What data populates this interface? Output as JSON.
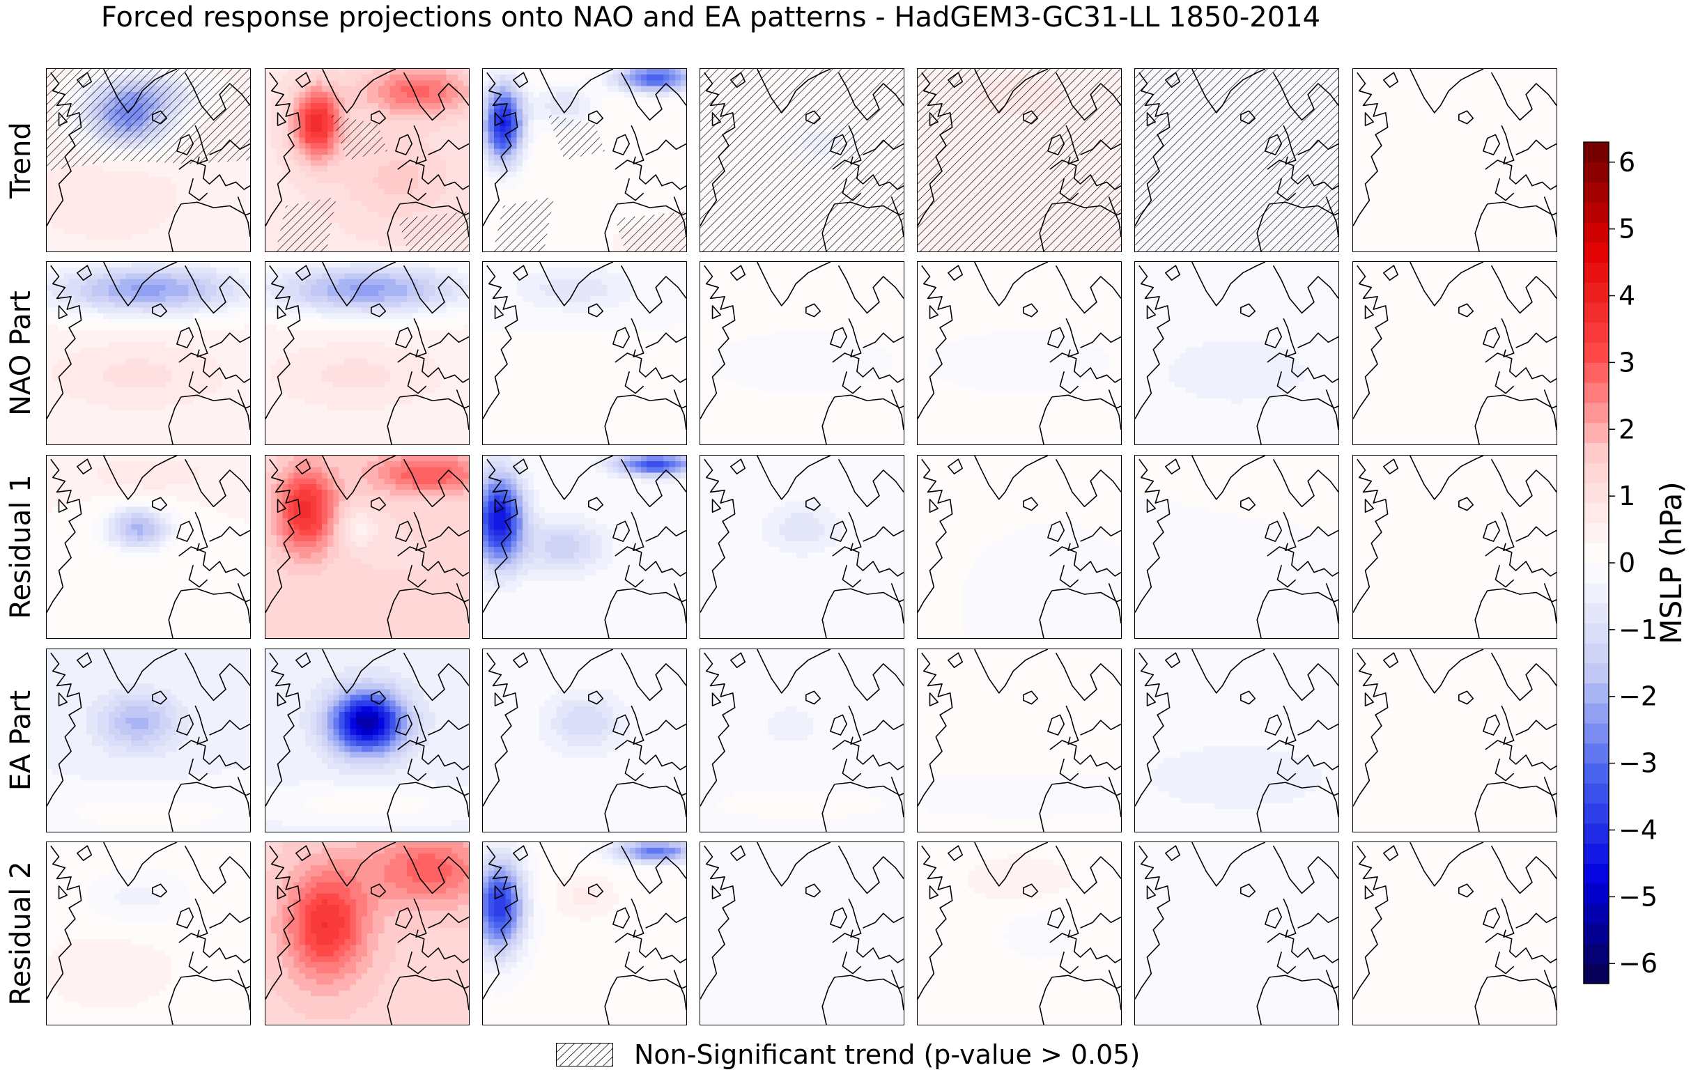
{
  "title": "Forced response projections onto NAO and EA patterns - HadGEM3-GC31-LL 1850-2014",
  "row_labels": [
    "Trend",
    "NAO Part",
    "Residual 1",
    "EA Part",
    "Residual 2"
  ],
  "legend": {
    "label": "Non-Significant trend (p-value > 0.05)"
  },
  "colorbar": {
    "label": "MSLP (hPa)",
    "vmin": -6.3,
    "vmax": 6.3,
    "ticks": [
      -6,
      -5,
      -4,
      -3,
      -2,
      -1,
      0,
      1,
      2,
      3,
      4,
      5,
      6
    ],
    "tick_labels": [
      "−6",
      "−5",
      "−4",
      "−3",
      "−2",
      "−1",
      "0",
      "1",
      "2",
      "3",
      "4",
      "5",
      "6"
    ],
    "colormap": [
      "#08004a",
      "#0000e0",
      "#4a64ef",
      "#c7cdf5",
      "#ffffff",
      "#ffd0d0",
      "#ff4848",
      "#e00000",
      "#6b0000"
    ]
  },
  "chart_data": {
    "type": "heatmap",
    "title": "Forced response projections onto NAO and EA patterns - HadGEM3-GC31-LL 1850-2014",
    "rows": [
      "Trend",
      "NAO Part",
      "Residual 1",
      "EA Part",
      "Residual 2"
    ],
    "columns": 7,
    "units": "hPa",
    "hatching": "Non-Significant trend (p-value > 0.05)",
    "panels": [
      [
        {
          "base": 0.5,
          "features": [
            {
              "x": 0.4,
              "y": 0.28,
              "sx": 0.22,
              "sy": 0.16,
              "amp": -2.8
            },
            {
              "x": 0.5,
              "y": 0.12,
              "sx": 0.3,
              "sy": 0.12,
              "amp": -1.5
            },
            {
              "x": 0.3,
              "y": 0.7,
              "sx": 0.3,
              "sy": 0.2,
              "amp": 0.4
            }
          ],
          "hatch": "top"
        },
        {
          "base": 0.8,
          "features": [
            {
              "x": 0.25,
              "y": 0.3,
              "sx": 0.12,
              "sy": 0.2,
              "amp": 3.0
            },
            {
              "x": 0.75,
              "y": 0.12,
              "sx": 0.3,
              "sy": 0.15,
              "amp": 2.0
            },
            {
              "x": 0.65,
              "y": 0.6,
              "sx": 0.3,
              "sy": 0.25,
              "amp": 0.8
            }
          ],
          "hatch": "partial"
        },
        {
          "base": 0.3,
          "features": [
            {
              "x": 0.1,
              "y": 0.3,
              "sx": 0.1,
              "sy": 0.22,
              "amp": -4.5
            },
            {
              "x": 0.85,
              "y": 0.05,
              "sx": 0.2,
              "sy": 0.08,
              "amp": -3.5
            },
            {
              "x": 0.4,
              "y": 0.2,
              "sx": 0.15,
              "sy": 0.12,
              "amp": -1.2
            }
          ],
          "hatch": "partial"
        },
        {
          "base": 0.1,
          "features": [
            {
              "x": 0.6,
              "y": 0.4,
              "sx": 0.15,
              "sy": 0.1,
              "amp": -0.6
            }
          ],
          "hatch": "all"
        },
        {
          "base": 0.3,
          "features": [
            {
              "x": 0.5,
              "y": 0.15,
              "sx": 0.3,
              "sy": 0.15,
              "amp": 0.5
            }
          ],
          "hatch": "all"
        },
        {
          "base": 0.0,
          "features": [
            {
              "x": 0.4,
              "y": 0.5,
              "sx": 0.4,
              "sy": 0.4,
              "amp": -0.2
            }
          ],
          "hatch": "all"
        },
        {
          "base": 0.0,
          "features": [],
          "hatch": "none"
        }
      ],
      [
        {
          "base": 0.4,
          "features": [
            {
              "x": 0.5,
              "y": 0.15,
              "sx": 0.5,
              "sy": 0.14,
              "amp": -2.6
            },
            {
              "x": 0.45,
              "y": 0.62,
              "sx": 0.4,
              "sy": 0.18,
              "amp": 0.6
            }
          ],
          "hatch": "none"
        },
        {
          "base": 0.4,
          "features": [
            {
              "x": 0.5,
              "y": 0.15,
              "sx": 0.5,
              "sy": 0.14,
              "amp": -2.6
            },
            {
              "x": 0.45,
              "y": 0.62,
              "sx": 0.4,
              "sy": 0.18,
              "amp": 0.6
            }
          ],
          "hatch": "none"
        },
        {
          "base": 0.0,
          "features": [
            {
              "x": 0.45,
              "y": 0.15,
              "sx": 0.3,
              "sy": 0.12,
              "amp": -0.8
            },
            {
              "x": 0.5,
              "y": 0.6,
              "sx": 0.3,
              "sy": 0.15,
              "amp": 0.3
            }
          ],
          "hatch": "none"
        },
        {
          "base": 0.1,
          "features": [
            {
              "x": 0.5,
              "y": 0.55,
              "sx": 0.4,
              "sy": 0.15,
              "amp": -0.35
            }
          ],
          "hatch": "none"
        },
        {
          "base": 0.1,
          "features": [
            {
              "x": 0.5,
              "y": 0.55,
              "sx": 0.4,
              "sy": 0.15,
              "amp": -0.35
            }
          ],
          "hatch": "none"
        },
        {
          "base": -0.2,
          "features": [
            {
              "x": 0.5,
              "y": 0.6,
              "sx": 0.4,
              "sy": 0.2,
              "amp": -0.2
            }
          ],
          "hatch": "none"
        },
        {
          "base": 0.0,
          "features": [],
          "hatch": "none"
        }
      ],
      [
        {
          "base": 0.3,
          "features": [
            {
              "x": 0.45,
              "y": 0.4,
              "sx": 0.16,
              "sy": 0.12,
              "amp": -2.2
            },
            {
              "x": 0.5,
              "y": 0.1,
              "sx": 0.3,
              "sy": 0.1,
              "amp": 0.6
            }
          ],
          "hatch": "none"
        },
        {
          "base": 1.2,
          "features": [
            {
              "x": 0.2,
              "y": 0.3,
              "sx": 0.15,
              "sy": 0.25,
              "amp": 2.5
            },
            {
              "x": 0.8,
              "y": 0.1,
              "sx": 0.3,
              "sy": 0.12,
              "amp": 1.8
            },
            {
              "x": 0.45,
              "y": 0.4,
              "sx": 0.1,
              "sy": 0.1,
              "amp": -0.8
            }
          ],
          "hatch": "none"
        },
        {
          "base": 0.0,
          "features": [
            {
              "x": 0.08,
              "y": 0.35,
              "sx": 0.12,
              "sy": 0.25,
              "amp": -4.5
            },
            {
              "x": 0.85,
              "y": 0.05,
              "sx": 0.2,
              "sy": 0.06,
              "amp": -3.5
            },
            {
              "x": 0.4,
              "y": 0.5,
              "sx": 0.2,
              "sy": 0.15,
              "amp": -1.4
            }
          ],
          "hatch": "none"
        },
        {
          "base": 0.0,
          "features": [
            {
              "x": 0.5,
              "y": 0.4,
              "sx": 0.2,
              "sy": 0.15,
              "amp": -0.8
            }
          ],
          "hatch": "none"
        },
        {
          "base": 0.0,
          "features": [
            {
              "x": 0.4,
              "y": 0.25,
              "sx": 0.4,
              "sy": 0.2,
              "amp": 0.3
            },
            {
              "x": 0.6,
              "y": 0.5,
              "sx": 0.2,
              "sy": 0.15,
              "amp": -0.3
            }
          ],
          "hatch": "none"
        },
        {
          "base": 0.0,
          "features": [
            {
              "x": 0.6,
              "y": 0.2,
              "sx": 0.3,
              "sy": 0.15,
              "amp": 0.3
            },
            {
              "x": 0.4,
              "y": 0.5,
              "sx": 0.3,
              "sy": 0.2,
              "amp": -0.3
            }
          ],
          "hatch": "none"
        },
        {
          "base": 0.0,
          "features": [],
          "hatch": "none"
        }
      ],
      [
        {
          "base": -0.3,
          "features": [
            {
              "x": 0.45,
              "y": 0.4,
              "sx": 0.2,
              "sy": 0.16,
              "amp": -1.6
            },
            {
              "x": 0.5,
              "y": 0.9,
              "sx": 0.5,
              "sy": 0.1,
              "amp": 0.5
            }
          ],
          "hatch": "none"
        },
        {
          "base": -0.4,
          "features": [
            {
              "x": 0.5,
              "y": 0.4,
              "sx": 0.18,
              "sy": 0.17,
              "amp": -5.0
            },
            {
              "x": 0.5,
              "y": 0.85,
              "sx": 0.5,
              "sy": 0.1,
              "amp": 0.6
            }
          ],
          "hatch": "none"
        },
        {
          "base": -0.1,
          "features": [
            {
              "x": 0.5,
              "y": 0.4,
              "sx": 0.18,
              "sy": 0.15,
              "amp": -1.1
            }
          ],
          "hatch": "none"
        },
        {
          "base": -0.1,
          "features": [
            {
              "x": 0.45,
              "y": 0.42,
              "sx": 0.12,
              "sy": 0.1,
              "amp": -0.5
            },
            {
              "x": 0.5,
              "y": 0.85,
              "sx": 0.5,
              "sy": 0.1,
              "amp": 0.2
            }
          ],
          "hatch": "none"
        },
        {
          "base": 0.05,
          "features": [
            {
              "x": 0.5,
              "y": 0.8,
              "sx": 0.5,
              "sy": 0.1,
              "amp": -0.25
            }
          ],
          "hatch": "none"
        },
        {
          "base": -0.2,
          "features": [
            {
              "x": 0.5,
              "y": 0.7,
              "sx": 0.5,
              "sy": 0.2,
              "amp": -0.2
            }
          ],
          "hatch": "none"
        },
        {
          "base": 0.0,
          "features": [],
          "hatch": "none"
        }
      ],
      [
        {
          "base": 0.2,
          "features": [
            {
              "x": 0.45,
              "y": 0.3,
              "sx": 0.25,
              "sy": 0.15,
              "amp": -0.6
            },
            {
              "x": 0.3,
              "y": 0.7,
              "sx": 0.3,
              "sy": 0.2,
              "amp": 0.3
            }
          ],
          "hatch": "none"
        },
        {
          "base": 1.4,
          "features": [
            {
              "x": 0.3,
              "y": 0.45,
              "sx": 0.2,
              "sy": 0.3,
              "amp": 2.2
            },
            {
              "x": 0.8,
              "y": 0.15,
              "sx": 0.3,
              "sy": 0.2,
              "amp": 1.5
            }
          ],
          "hatch": "none"
        },
        {
          "base": 0.1,
          "features": [
            {
              "x": 0.08,
              "y": 0.35,
              "sx": 0.12,
              "sy": 0.25,
              "amp": -4.0
            },
            {
              "x": 0.85,
              "y": 0.05,
              "sx": 0.2,
              "sy": 0.06,
              "amp": -3.0
            },
            {
              "x": 0.5,
              "y": 0.3,
              "sx": 0.15,
              "sy": 0.12,
              "amp": 0.6
            }
          ],
          "hatch": "none"
        },
        {
          "base": 0.0,
          "features": [
            {
              "x": 0.5,
              "y": 0.45,
              "sx": 0.3,
              "sy": 0.2,
              "amp": -0.3
            }
          ],
          "hatch": "none"
        },
        {
          "base": 0.1,
          "features": [
            {
              "x": 0.5,
              "y": 0.2,
              "sx": 0.3,
              "sy": 0.15,
              "amp": 0.4
            },
            {
              "x": 0.6,
              "y": 0.5,
              "sx": 0.15,
              "sy": 0.12,
              "amp": -0.4
            }
          ],
          "hatch": "none"
        },
        {
          "base": 0.0,
          "features": [
            {
              "x": 0.4,
              "y": 0.45,
              "sx": 0.3,
              "sy": 0.2,
              "amp": -0.3
            }
          ],
          "hatch": "none"
        },
        {
          "base": 0.0,
          "features": [],
          "hatch": "none"
        }
      ]
    ]
  }
}
